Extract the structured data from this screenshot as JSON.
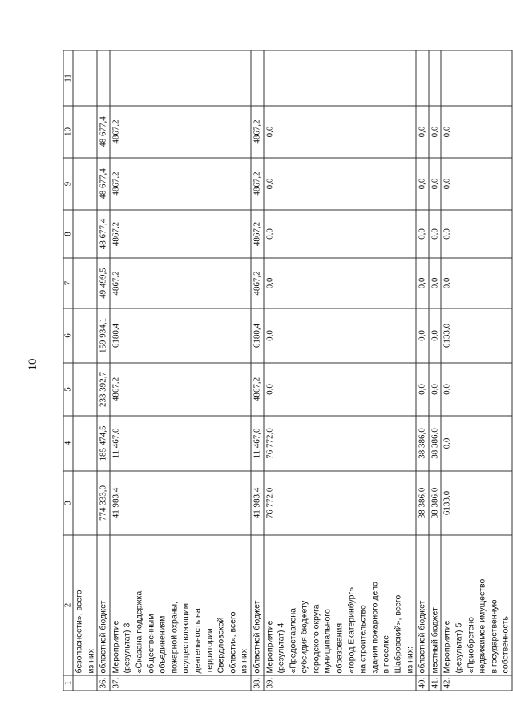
{
  "page_number": "10",
  "columns": [
    "1",
    "2",
    "3",
    "4",
    "5",
    "6",
    "7",
    "8",
    "9",
    "10",
    "11"
  ],
  "rows": [
    {
      "num": "",
      "label": "безопасности», всего\nиз них",
      "values": [
        "",
        "",
        "",
        "",
        "",
        "",
        "",
        "",
        ""
      ]
    },
    {
      "num": "36.",
      "label": "областной бюджет",
      "values": [
        "774 333,0",
        "185 474,5",
        "233 392,7",
        "159 934,1",
        "49 499,5",
        "48 677,4",
        "48 677,4",
        "48 677,4",
        ""
      ]
    },
    {
      "num": "37.",
      "label": "Мероприятие\n(результат) 3\n«Оказана поддержка\nобщественным\nобъединениям\nпожарной охраны,\nосуществляющим\nдеятельность на\nтерритории\nСвердловской\nобласти», всего\nиз них",
      "values": [
        "41 983,4",
        "11 467,0",
        "4867,2",
        "6180,4",
        "4867,2",
        "4867,2",
        "4867,2",
        "4867,2",
        ""
      ]
    },
    {
      "num": "38.",
      "label": "областной бюджет",
      "values": [
        "41 983,4",
        "11 467,0",
        "4867,2",
        "6180,4",
        "4867,2",
        "4867,2",
        "4867,2",
        "4867,2",
        ""
      ]
    },
    {
      "num": "39.",
      "label": "Мероприятие\n(результат) 4\n«Предоставлена\nсубсидия бюджету\nгородского округа\nмуниципального\nобразования\n«город Екатеринбург»\nна строительство\nздания пожарного депо\nв поселке\nШабровский», всего\nиз них:",
      "values": [
        "76 772,0",
        "76 772,0",
        "0,0",
        "0,0",
        "0,0",
        "0,0",
        "0,0",
        "0,0",
        ""
      ]
    },
    {
      "num": "40.",
      "label": "областной бюджет",
      "values": [
        "38 386,0",
        "38 386,0",
        "0,0",
        "0,0",
        "0,0",
        "0,0",
        "0,0",
        "0,0",
        ""
      ]
    },
    {
      "num": "41.",
      "label": "местный бюджет",
      "values": [
        "38 386,0",
        "38 386,0",
        "0,0",
        "0,0",
        "0,0",
        "0,0",
        "0,0",
        "0,0",
        ""
      ]
    },
    {
      "num": "42.",
      "label": "Мероприятие\n(результат) 5\n«Приобретено\nнедвижимое имущество\nв государственную\nсобственность",
      "values": [
        "6133,0",
        "0,0",
        "0,0",
        "6133,0",
        "0,0",
        "0,0",
        "0,0",
        "0,0",
        ""
      ]
    }
  ]
}
